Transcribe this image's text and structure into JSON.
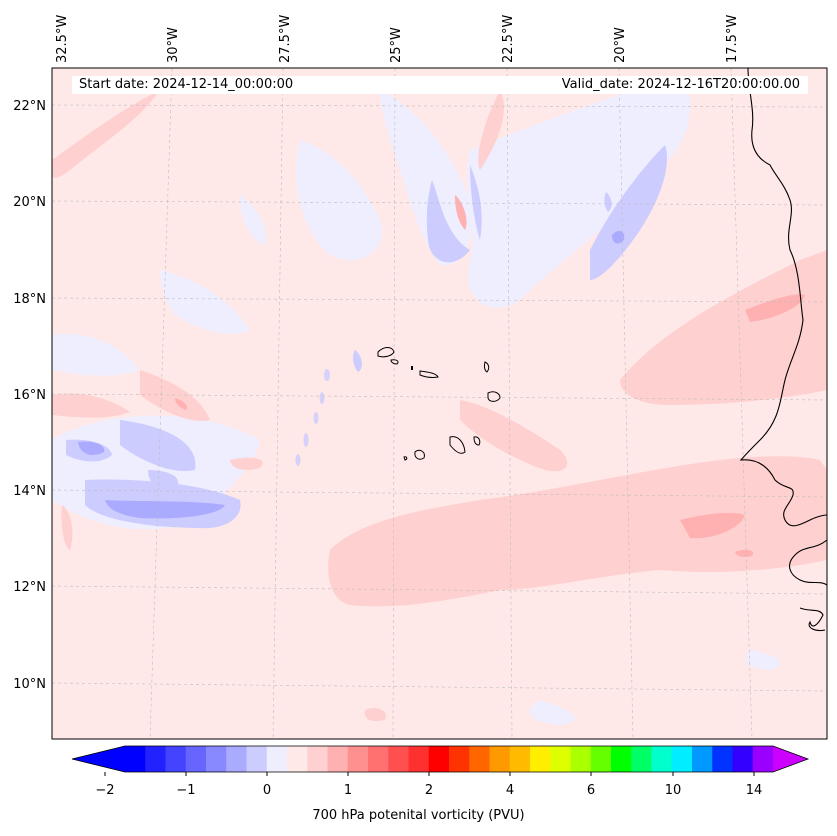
{
  "map": {
    "start_date": "Start date: 2024-12-14_00:00:00",
    "valid_date": "Valid_date: 2024-12-16T20:00:00.00",
    "lon_labels": [
      "32.5°W",
      "30°W",
      "27.5°W",
      "25°W",
      "22.5°W",
      "20°W",
      "17.5°W"
    ],
    "lat_labels": [
      "22°N",
      "20°N",
      "18°N",
      "16°N",
      "14°N",
      "12°N",
      "10°N"
    ],
    "colorbar": {
      "label": "700 hPa potenital vorticity (PVU)",
      "ticks": [
        "−2",
        "−1",
        "0",
        "1",
        "2",
        "4",
        "6",
        "10",
        "14"
      ],
      "colors": [
        "#0000ff",
        "#2222ff",
        "#4444ff",
        "#6666ff",
        "#8888ff",
        "#aaaaff",
        "#ccccff",
        "#eeeeff",
        "#ffe8e8",
        "#ffd0d0",
        "#ffb0b0",
        "#ff9090",
        "#ff7070",
        "#ff5050",
        "#ff3030",
        "#ff0000",
        "#ff3300",
        "#ff6600",
        "#ff9900",
        "#ffbb00",
        "#ffee00",
        "#ddff00",
        "#aaff00",
        "#66ff00",
        "#00ff00",
        "#00ff66",
        "#00ffcc",
        "#00eeff",
        "#0099ff",
        "#0033ff",
        "#3300ff",
        "#9900ff"
      ]
    }
  }
}
